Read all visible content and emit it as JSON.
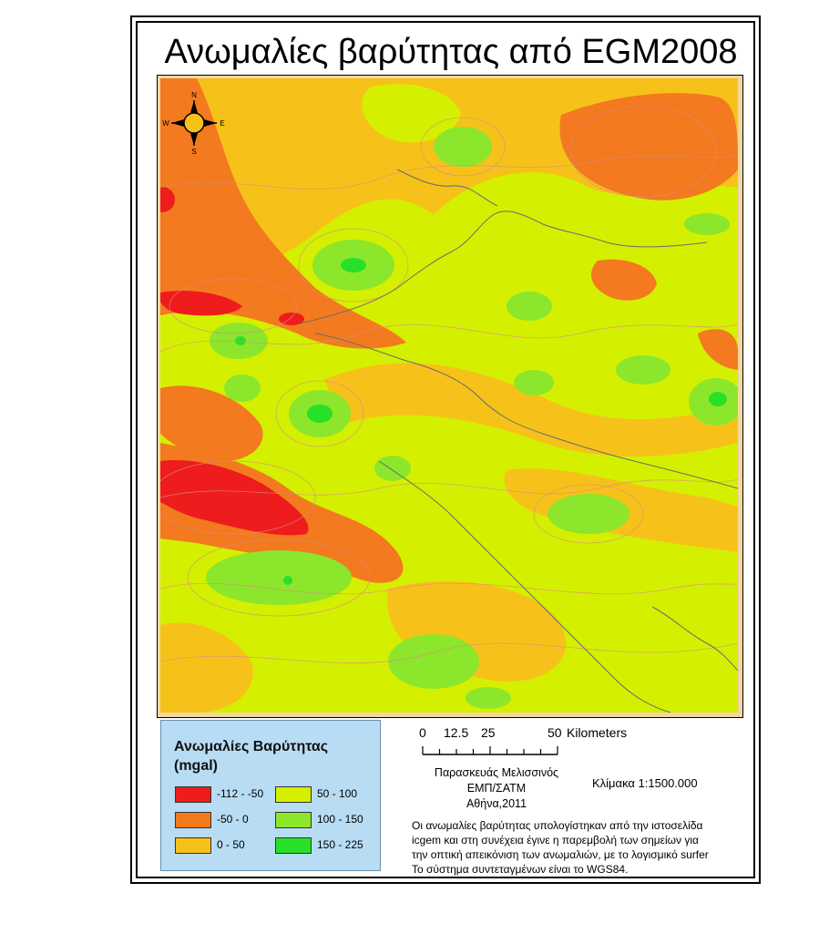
{
  "map": {
    "title": "Ανωμαλίες βαρύτητας από EGM2008",
    "compass": {
      "n": "N",
      "s": "S",
      "e": "E",
      "w": "W"
    }
  },
  "legend": {
    "title_line1": "Ανωμαλίες Βαρύτητας",
    "title_line2": "(mgal)",
    "classes": [
      {
        "label": "-112 - -50",
        "color": "#ee1c1c"
      },
      {
        "label": "-50 - 0",
        "color": "#f37a1e"
      },
      {
        "label": "0 - 50",
        "color": "#f6c21a"
      },
      {
        "label": "50 - 100",
        "color": "#d4f000"
      },
      {
        "label": "100 - 150",
        "color": "#8ce62b"
      },
      {
        "label": "150 - 225",
        "color": "#28e028"
      }
    ]
  },
  "scale": {
    "ticks": [
      "0",
      "12.5",
      "25",
      "50"
    ],
    "unit": "Kilometers",
    "ratio": "Κλίμακα 1:1500.000"
  },
  "credits": {
    "author": "Παρασκευάς Μελισσινός",
    "institution": "ΕΜΠ/ΣΑΤΜ",
    "place_year": "Αθήνα,2011"
  },
  "note": {
    "line1": "Οι ανωμαλίες βαρύτητας υπολογίστηκαν από την ιστοσελίδα",
    "line2": "icgem και στη συνέχεια έγινε η παρεμβολή των σημείων για",
    "line3": "την οπτική απεικόνιση των ανωμαλιών, με το λογισμικό surfer",
    "line4": "Το σύστημα συντεταγμένων είναι το WGS84."
  }
}
